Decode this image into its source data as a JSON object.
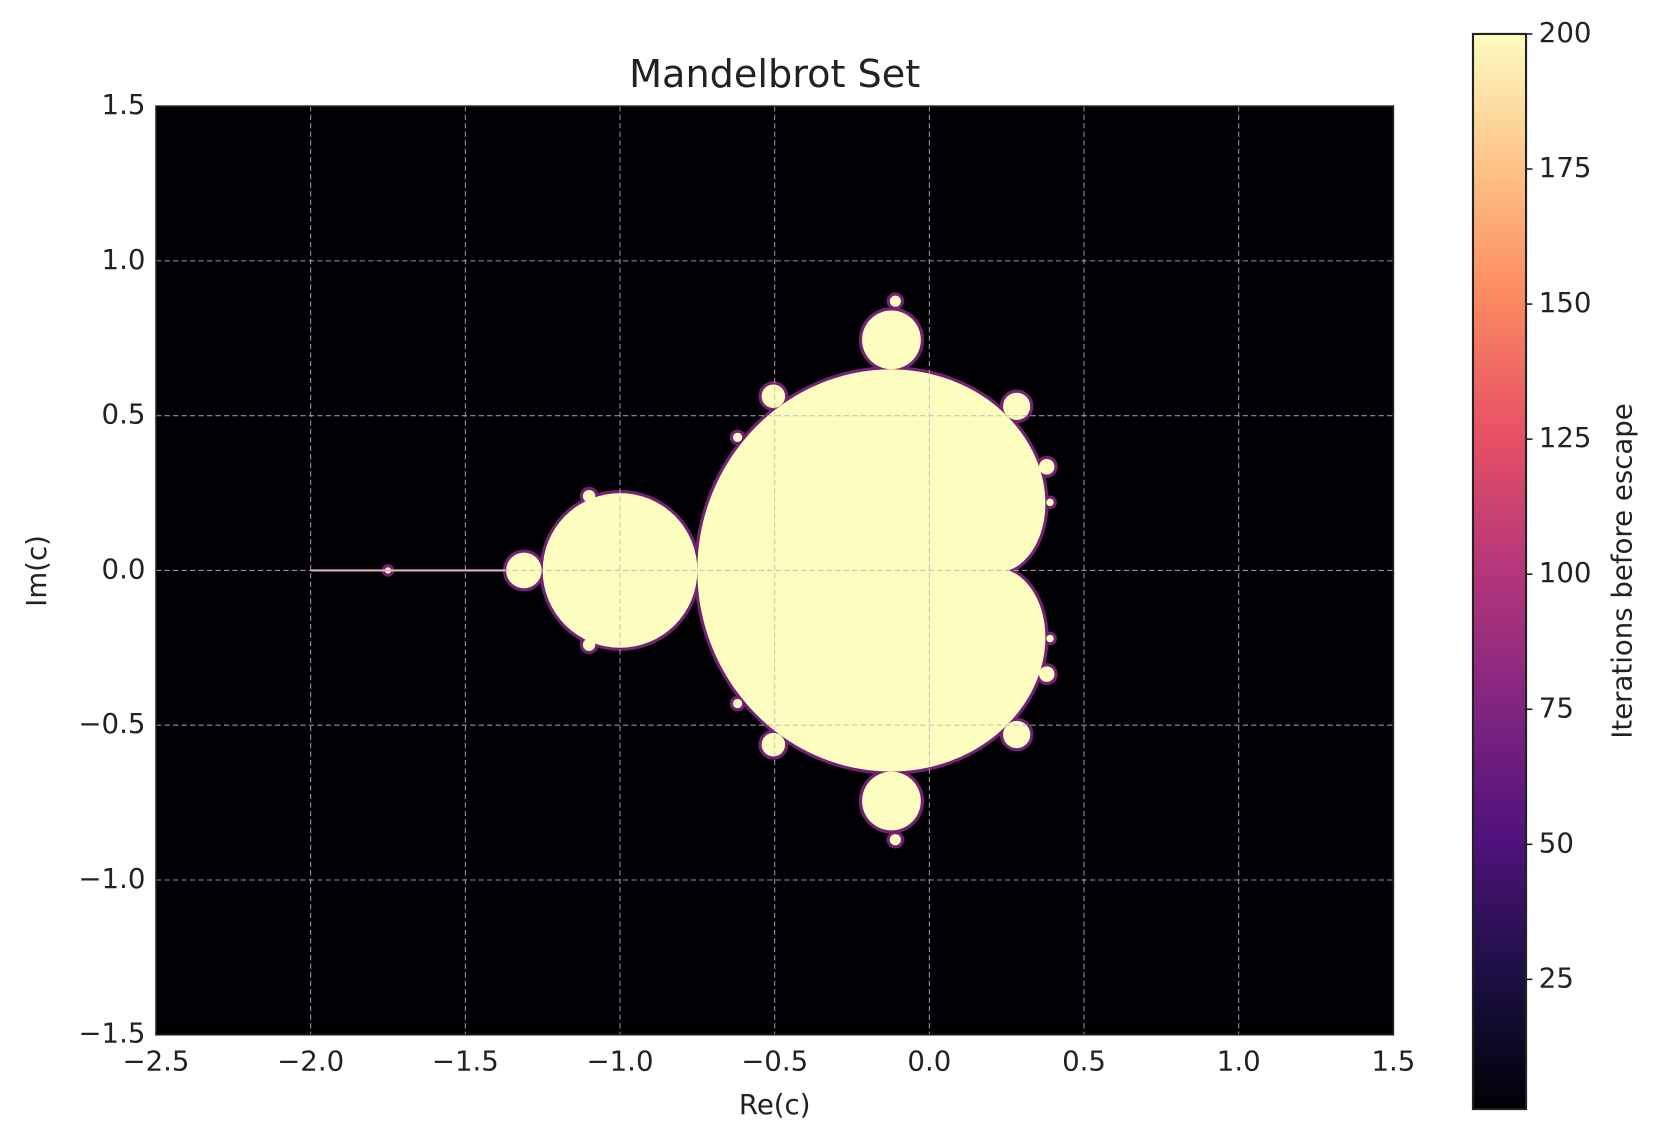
{
  "chart_data": {
    "type": "heatmap",
    "title": "Mandelbrot Set",
    "xlabel": "Re(c)",
    "ylabel": "Im(c)",
    "xlim": [
      -2.5,
      1.5
    ],
    "ylim": [
      -1.5,
      1.5
    ],
    "xticks": [
      {
        "value": -2.5,
        "label": "−2.5"
      },
      {
        "value": -2.0,
        "label": "−2.0"
      },
      {
        "value": -1.5,
        "label": "−1.5"
      },
      {
        "value": -1.0,
        "label": "−1.0"
      },
      {
        "value": -0.5,
        "label": "−0.5"
      },
      {
        "value": 0,
        "label": "0.0"
      },
      0.5,
      {
        "value": 1,
        "label": "1.0"
      },
      1.5
    ],
    "yticks": [
      {
        "value": -1.5,
        "label": "−1.5"
      },
      {
        "value": -1.0,
        "label": "−1.0"
      },
      {
        "value": -0.5,
        "label": "−0.5"
      },
      {
        "value": 0,
        "label": "0.0"
      },
      0.5,
      {
        "value": 1,
        "label": "1.0"
      },
      1.5
    ],
    "grid": true,
    "colorbar": {
      "label": "Iterations before escape",
      "colormap": "magma",
      "clim": [
        1,
        200
      ],
      "ticks": [
        25,
        50,
        75,
        100,
        125,
        150,
        175,
        200
      ]
    }
  }
}
